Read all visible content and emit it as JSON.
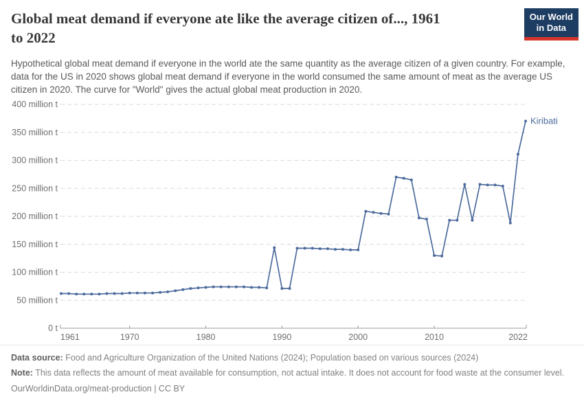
{
  "header": {
    "title_lines": [
      "Global meat demand if everyone ate like the average citizen of..., 1961",
      "to 2022"
    ],
    "subtitle": "Hypothetical global meat demand if everyone in the world ate the same quantity as the average citizen of a given country. For example, data for the US in 2020 shows global meat demand if everyone in the world consumed the same amount of meat as the average US citizen in 2020. The curve for \"World\" gives the actual global meat production in 2020.",
    "logo": {
      "line1": "Our World",
      "line2": "in Data",
      "bg_color": "#1d3d63",
      "accent_color": "#d7352c"
    }
  },
  "chart_data": {
    "type": "line",
    "title": "Global meat demand if everyone ate like the average citizen of..., 1961 to 2022",
    "xlabel": "",
    "ylabel": "",
    "unit": "million t",
    "xlim": [
      1961,
      2022
    ],
    "ylim": [
      0,
      400
    ],
    "grid": "horizontal dashed",
    "legend_position": "end-of-line label",
    "y_ticks": [
      {
        "value": 0,
        "label": "0 t"
      },
      {
        "value": 50,
        "label": "50 million t"
      },
      {
        "value": 100,
        "label": "100 million t"
      },
      {
        "value": 150,
        "label": "150 million t"
      },
      {
        "value": 200,
        "label": "200 million t"
      },
      {
        "value": 250,
        "label": "250 million t"
      },
      {
        "value": 300,
        "label": "300 million t"
      },
      {
        "value": 350,
        "label": "350 million t"
      },
      {
        "value": 400,
        "label": "400 million t"
      }
    ],
    "x_ticks": [
      {
        "year": 1961,
        "label": "1961"
      },
      {
        "year": 1970,
        "label": "1970"
      },
      {
        "year": 1980,
        "label": "1980"
      },
      {
        "year": 1990,
        "label": "1990"
      },
      {
        "year": 2000,
        "label": "2000"
      },
      {
        "year": 2010,
        "label": "2010"
      },
      {
        "year": 2022,
        "label": "2022"
      }
    ],
    "series": [
      {
        "name": "Kiribati",
        "color": "#4c6a9c",
        "x": [
          1961,
          1962,
          1963,
          1964,
          1965,
          1966,
          1967,
          1968,
          1969,
          1970,
          1971,
          1972,
          1973,
          1974,
          1975,
          1976,
          1977,
          1978,
          1979,
          1980,
          1981,
          1982,
          1983,
          1984,
          1985,
          1986,
          1987,
          1988,
          1989,
          1990,
          1991,
          1992,
          1993,
          1994,
          1995,
          1996,
          1997,
          1998,
          1999,
          2000,
          2001,
          2002,
          2003,
          2004,
          2005,
          2006,
          2007,
          2008,
          2009,
          2010,
          2011,
          2012,
          2013,
          2014,
          2015,
          2016,
          2017,
          2018,
          2019,
          2020,
          2021,
          2022
        ],
        "values": [
          62,
          62,
          61,
          61,
          61,
          61,
          62,
          62,
          62,
          63,
          63,
          63,
          63,
          64,
          65,
          67,
          69,
          71,
          72,
          73,
          74,
          74,
          74,
          74,
          74,
          73,
          73,
          72,
          144,
          71,
          71,
          143,
          143,
          143,
          142,
          142,
          141,
          141,
          140,
          140,
          209,
          207,
          205,
          204,
          270,
          268,
          265,
          197,
          195,
          130,
          129,
          193,
          193,
          257,
          193,
          257,
          256,
          256,
          254,
          188,
          311,
          370
        ]
      }
    ]
  },
  "footer": {
    "datasource_label": "Data source:",
    "datasource_text": " Food and Agriculture Organization of the United Nations (2024); Population based on various sources (2024)",
    "note_label": "Note:",
    "note_text": " This data reflects the amount of meat available for consumption, not actual intake. It does not account for food waste at the consumer level.",
    "link": "OurWorldinData.org/meat-production | CC BY"
  }
}
